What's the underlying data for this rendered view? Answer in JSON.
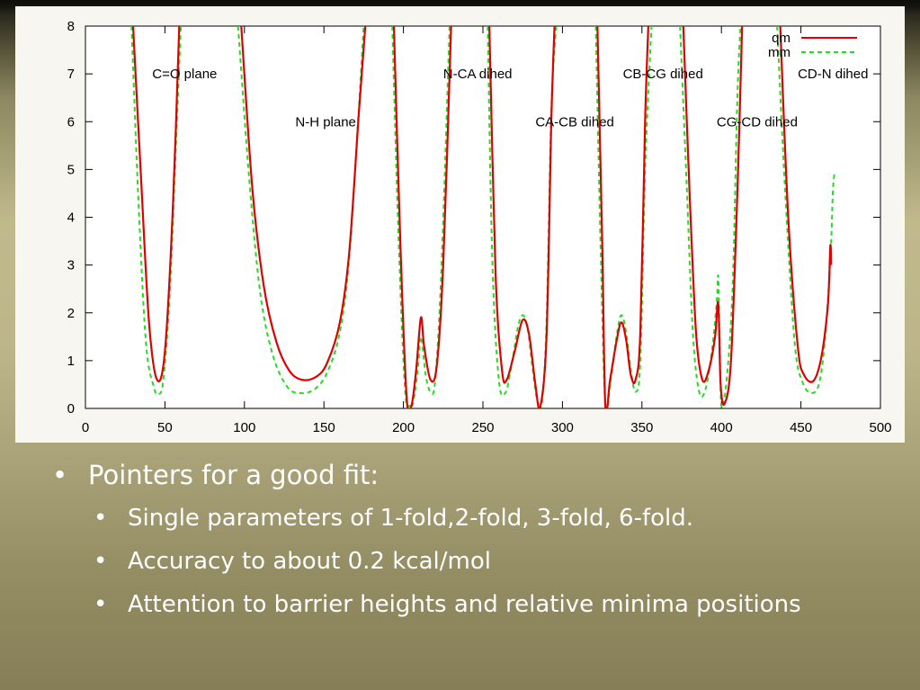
{
  "slide": {
    "heading": "Pointers for a good fit:",
    "points": [
      "Single parameters of 1-fold,2-fold, 3-fold, 6-fold.",
      "Accuracy to about 0.2 kcal/mol",
      "Attention to barrier heights and relative minima positions"
    ],
    "bullet_glyph": "•"
  },
  "chart_data": {
    "type": "line",
    "title": "",
    "xlabel": "",
    "ylabel": "",
    "xlim": [
      0,
      500
    ],
    "ylim": [
      0,
      8
    ],
    "xticks": [
      "0",
      "50",
      "100",
      "150",
      "200",
      "250",
      "300",
      "350",
      "400",
      "450",
      "500"
    ],
    "yticks": [
      "0",
      "1",
      "2",
      "3",
      "4",
      "5",
      "6",
      "7",
      "8"
    ],
    "grid": false,
    "legend_position": "top-right",
    "annotations": [
      {
        "text": "C=O plane",
        "x": 42,
        "y": 7
      },
      {
        "text": "N-H plane",
        "x": 132,
        "y": 6
      },
      {
        "text": "N-CA dihed",
        "x": 225,
        "y": 7
      },
      {
        "text": "CA-CB dihed",
        "x": 283,
        "y": 6
      },
      {
        "text": "CB-CG dihed",
        "x": 338,
        "y": 7
      },
      {
        "text": "CG-CD dihed",
        "x": 397,
        "y": 6
      },
      {
        "text": "CD-N dihed",
        "x": 448,
        "y": 7
      }
    ],
    "series": [
      {
        "name": "qm",
        "color": "#e00000",
        "dash": "solid",
        "points": [
          [
            30,
            8
          ],
          [
            35,
            4.8
          ],
          [
            40,
            1.8
          ],
          [
            45,
            0.6
          ],
          [
            50,
            1.2
          ],
          [
            55,
            4.2
          ],
          [
            59,
            8
          ],
          null,
          [
            98,
            8
          ],
          [
            105,
            4.6
          ],
          [
            112,
            2.6
          ],
          [
            120,
            1.4
          ],
          [
            128,
            0.8
          ],
          [
            136,
            0.6
          ],
          [
            145,
            0.66
          ],
          [
            152,
            0.95
          ],
          [
            160,
            1.8
          ],
          [
            166,
            3.3
          ],
          [
            172,
            6.2
          ],
          [
            176,
            8
          ],
          null,
          [
            194,
            8
          ],
          [
            198,
            3.5
          ],
          [
            202,
            0.25
          ],
          [
            205,
            0.05
          ],
          [
            208,
            0.8
          ],
          [
            211,
            1.9
          ],
          [
            213,
            1.3
          ],
          [
            217,
            0.6
          ],
          [
            221,
            0.9
          ],
          [
            225,
            3
          ],
          [
            230,
            8
          ],
          null,
          [
            254,
            8
          ],
          [
            258,
            2.8
          ],
          [
            262,
            0.8
          ],
          [
            265,
            0.6
          ],
          [
            270,
            1.2
          ],
          [
            275,
            1.85
          ],
          [
            279,
            1.55
          ],
          [
            283,
            0.5
          ],
          [
            286,
            0.02
          ],
          [
            290,
            1.5
          ],
          [
            293,
            6
          ],
          [
            295,
            8
          ],
          null,
          [
            322,
            8
          ],
          [
            325,
            3.5
          ],
          [
            327,
            0.05
          ],
          [
            330,
            0.6
          ],
          [
            334,
            1.4
          ],
          [
            337,
            1.8
          ],
          [
            340,
            1.45
          ],
          [
            343,
            0.7
          ],
          [
            346,
            0.6
          ],
          [
            349,
            1.6
          ],
          [
            352,
            6
          ],
          [
            354,
            8
          ],
          null,
          [
            376,
            8
          ],
          [
            380,
            4.5
          ],
          [
            384,
            1.6
          ],
          [
            388,
            0.6
          ],
          [
            392,
            0.8
          ],
          [
            396,
            1.5
          ],
          [
            398,
            2.2
          ],
          [
            399.5,
            0.5
          ],
          [
            402,
            0.1
          ],
          [
            406,
            1
          ],
          [
            410,
            4.5
          ],
          [
            413,
            8
          ],
          null,
          [
            437,
            8
          ],
          [
            442,
            4
          ],
          [
            448,
            1.3
          ],
          [
            452,
            0.7
          ],
          [
            458,
            0.58
          ],
          [
            463,
            1.1
          ],
          [
            467,
            2.2
          ],
          [
            468.5,
            3.4
          ],
          [
            469,
            3.0
          ]
        ]
      },
      {
        "name": "mm",
        "color": "#22dd22",
        "dash": "dashed",
        "points": [
          [
            29,
            8
          ],
          [
            33,
            4.6
          ],
          [
            38,
            1.4
          ],
          [
            43,
            0.45
          ],
          [
            46,
            0.3
          ],
          [
            49,
            0.6
          ],
          [
            53,
            2.4
          ],
          [
            57,
            5.6
          ],
          [
            60,
            8
          ],
          null,
          [
            96,
            8
          ],
          [
            103,
            4.8
          ],
          [
            110,
            2.4
          ],
          [
            118,
            1.1
          ],
          [
            127,
            0.45
          ],
          [
            135,
            0.32
          ],
          [
            144,
            0.4
          ],
          [
            152,
            0.75
          ],
          [
            160,
            1.6
          ],
          [
            166,
            3.2
          ],
          [
            172,
            6.3
          ],
          [
            175,
            8
          ],
          null,
          [
            193,
            8
          ],
          [
            197,
            3.5
          ],
          [
            201,
            0.4
          ],
          [
            204,
            0.05
          ],
          [
            206,
            0.1
          ],
          [
            209,
            0.8
          ],
          [
            211,
            1.5
          ],
          [
            214,
            0.7
          ],
          [
            217,
            0.35
          ],
          [
            220,
            0.6
          ],
          [
            224,
            3
          ],
          [
            229,
            8
          ],
          null,
          [
            253,
            8
          ],
          [
            256,
            3
          ],
          [
            260,
            0.6
          ],
          [
            264,
            0.32
          ],
          [
            268,
            0.9
          ],
          [
            272,
            1.7
          ],
          [
            275,
            1.95
          ],
          [
            278,
            1.7
          ],
          [
            281,
            0.9
          ],
          [
            284,
            0.2
          ],
          [
            287,
            0.1
          ],
          [
            290,
            1.8
          ],
          [
            293,
            6.2
          ],
          [
            296,
            8
          ],
          null,
          [
            321,
            8
          ],
          [
            324,
            3.4
          ],
          [
            327,
            0.05
          ],
          [
            330,
            0.5
          ],
          [
            334,
            1.5
          ],
          [
            337,
            1.95
          ],
          [
            340,
            1.6
          ],
          [
            343,
            0.8
          ],
          [
            346,
            0.35
          ],
          [
            349,
            1
          ],
          [
            352,
            5
          ],
          [
            356,
            8
          ],
          null,
          [
            374,
            8
          ],
          [
            378,
            4.8
          ],
          [
            382,
            1.6
          ],
          [
            386,
            0.35
          ],
          [
            390,
            0.4
          ],
          [
            394,
            1.2
          ],
          [
            397,
            2.2
          ],
          [
            398,
            2.75
          ],
          [
            399,
            1.2
          ],
          [
            400,
            0.05
          ],
          [
            403,
            0.5
          ],
          [
            407,
            2.5
          ],
          [
            410,
            6.5
          ],
          [
            412,
            8
          ],
          null,
          [
            435,
            8
          ],
          [
            440,
            4.6
          ],
          [
            446,
            1.4
          ],
          [
            451,
            0.55
          ],
          [
            457,
            0.32
          ],
          [
            462,
            0.6
          ],
          [
            466,
            1.8
          ],
          [
            469,
            3.5
          ],
          [
            470,
            4.5
          ],
          [
            471,
            4.9
          ]
        ]
      }
    ]
  }
}
